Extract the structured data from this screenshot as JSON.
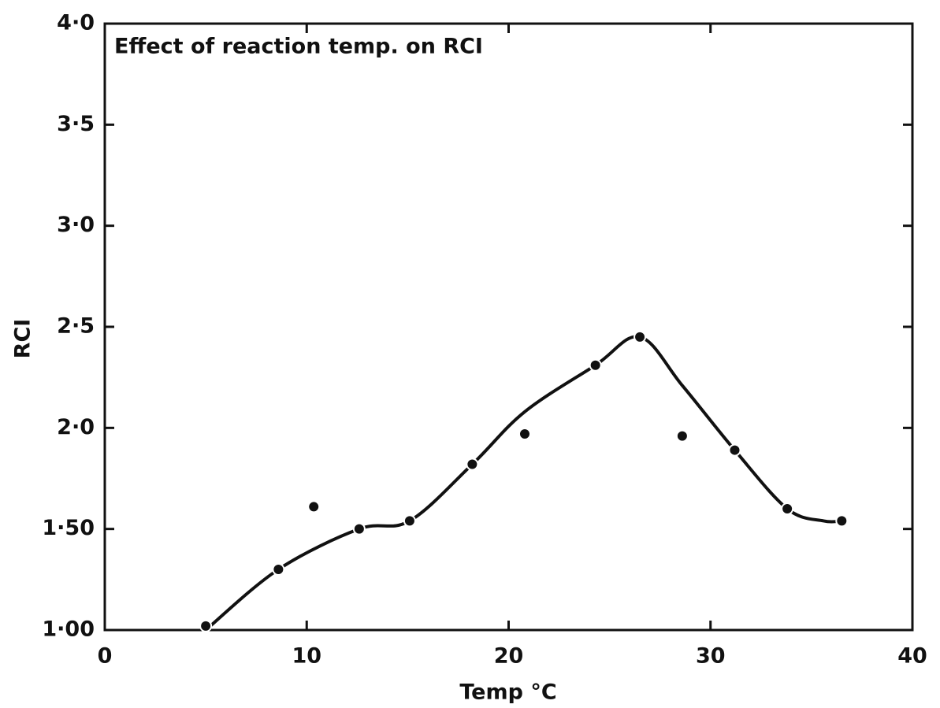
{
  "chart_data": {
    "type": "scatter",
    "title": "Effect of reaction temp. on RCI",
    "x_label": "Temp °C",
    "y_label": "RCI",
    "color": "#111111",
    "x": [
      5,
      8.6,
      10.35,
      12.6,
      15.1,
      18.2,
      20.8,
      24.3,
      26.5,
      28.6,
      31.2,
      33.8,
      36.5
    ],
    "values": [
      1.02,
      1.3,
      1.61,
      1.5,
      1.54,
      1.82,
      1.97,
      2.31,
      2.45,
      1.96,
      1.89,
      1.6,
      1.54
    ],
    "fit": {
      "x": [
        5,
        8.6,
        12.6,
        15.1,
        18.2,
        20.8,
        24.3,
        26.5,
        28.6,
        31.2,
        33.8,
        35.6,
        36.5
      ],
      "values": [
        1.0,
        1.3,
        1.5,
        1.54,
        1.82,
        2.08,
        2.31,
        2.45,
        2.21,
        1.89,
        1.6,
        1.54,
        1.54
      ]
    },
    "xlim": [
      0,
      40
    ],
    "xticks": [
      0,
      10,
      20,
      30,
      40
    ],
    "ylim": [
      1,
      4
    ],
    "yticks": [
      {
        "value": 1,
        "label": "1·00"
      },
      {
        "value": 1.5,
        "label": "1·50"
      },
      {
        "value": 2,
        "label": "2·0"
      },
      {
        "value": 2.5,
        "label": "2·5"
      },
      {
        "value": 3,
        "label": "3·0"
      },
      {
        "value": 3.5,
        "label": "3·5"
      },
      {
        "value": 4,
        "label": "4·0"
      }
    ]
  }
}
